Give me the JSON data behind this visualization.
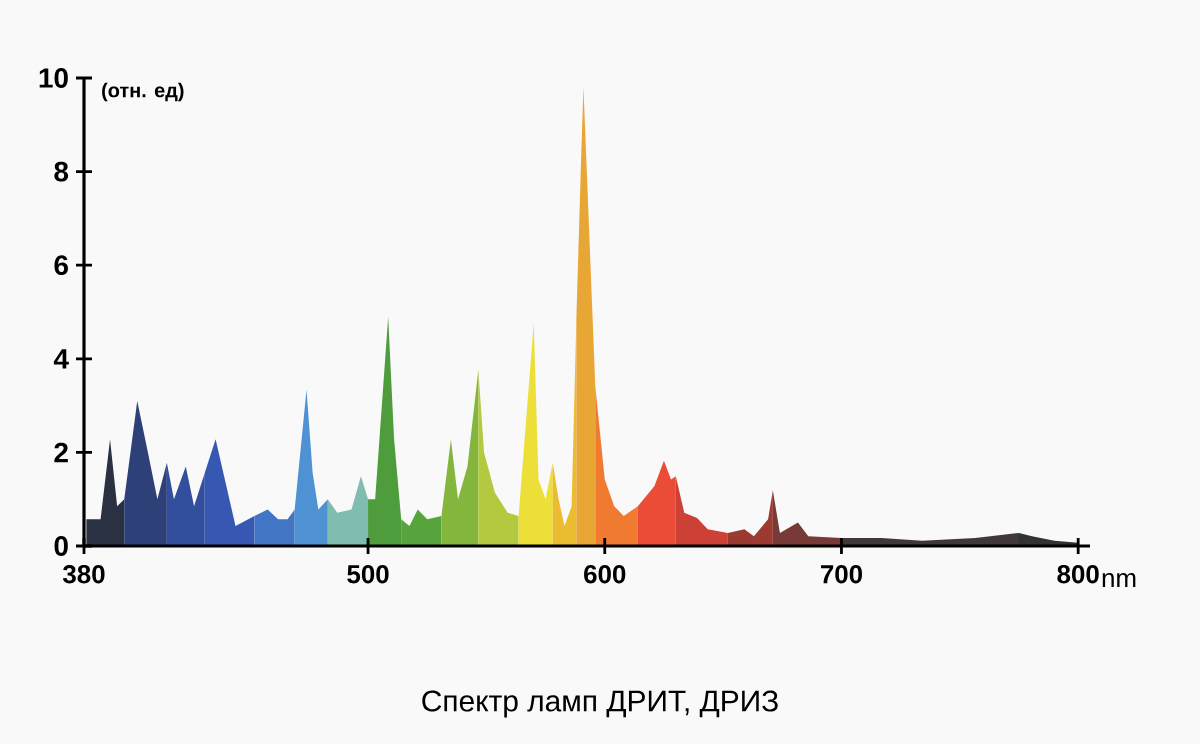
{
  "chart_data": {
    "type": "area",
    "title": "Спектр ламп ДРИТ, ДРИЗ",
    "xlabel": "nm",
    "ylabel": "(отн. ед)",
    "xlim": [
      380,
      805
    ],
    "ylim": [
      0,
      10
    ],
    "xticks": [
      380,
      500,
      600,
      700,
      800
    ],
    "yticks": [
      0,
      2,
      4,
      6,
      8,
      10
    ],
    "series": [
      {
        "color": "#2a3142",
        "x": [
          381,
          387,
          391,
          394,
          397
        ],
        "values": [
          0.57,
          0.57,
          2.28,
          0.85,
          1.0
        ]
      },
      {
        "color": "#2e4078",
        "x": [
          397,
          402.5,
          407,
          411,
          415
        ],
        "values": [
          1.0,
          3.1,
          2.0,
          1.0,
          1.78
        ]
      },
      {
        "color": "#324e9c",
        "x": [
          415,
          418,
          423,
          426.5,
          431
        ],
        "values": [
          1.78,
          1.0,
          1.7,
          0.85,
          1.56
        ]
      },
      {
        "color": "#3658b2",
        "x": [
          431,
          435.6,
          439.5,
          444,
          452
        ],
        "values": [
          1.56,
          2.28,
          1.42,
          0.43,
          0.64
        ]
      },
      {
        "color": "#4276c4",
        "x": [
          452,
          457.6,
          462,
          466,
          469
        ],
        "values": [
          0.64,
          0.78,
          0.57,
          0.57,
          0.78
        ]
      },
      {
        "color": "#4e92d4",
        "x": [
          469,
          474,
          476.6,
          479,
          483
        ],
        "values": [
          0.78,
          3.34,
          1.56,
          0.78,
          1.0
        ]
      },
      {
        "color": "#80bcb0",
        "x": [
          483,
          487,
          493,
          497,
          500
        ],
        "values": [
          1.0,
          0.71,
          0.78,
          1.49,
          1.0
        ]
      },
      {
        "color": "#4e9c3c",
        "x": [
          500,
          503,
          508.5,
          511,
          514
        ],
        "values": [
          1.0,
          1.0,
          4.9,
          2.28,
          0.57
        ]
      },
      {
        "color": "#58a43c",
        "x": [
          514,
          517.5,
          521,
          525,
          531
        ],
        "values": [
          0.57,
          0.43,
          0.78,
          0.57,
          0.64
        ]
      },
      {
        "color": "#84b63e",
        "x": [
          531,
          535,
          538,
          542,
          546.6
        ],
        "values": [
          0.64,
          2.28,
          1.0,
          1.7,
          3.77
        ]
      },
      {
        "color": "#b4c840",
        "x": [
          546.6,
          549,
          553.6,
          559,
          563.6
        ],
        "values": [
          3.77,
          2.0,
          1.14,
          0.71,
          0.64
        ]
      },
      {
        "color": "#ece038",
        "x": [
          563.6,
          570,
          572,
          575,
          578
        ],
        "values": [
          0.64,
          4.77,
          1.42,
          1.0,
          1.78
        ]
      },
      {
        "color": "#ecbc30",
        "x": [
          578,
          580.5,
          583,
          586,
          588
        ],
        "values": [
          1.78,
          1.0,
          0.43,
          0.85,
          4.84
        ]
      },
      {
        "color": "#e8a634",
        "x": [
          588,
          590,
          591,
          593,
          596
        ],
        "values": [
          4.84,
          8.25,
          9.8,
          7.25,
          3.41
        ]
      },
      {
        "color": "#f07a30",
        "x": [
          596,
          600,
          604,
          608,
          614
        ],
        "values": [
          3.41,
          1.42,
          0.85,
          0.64,
          0.85
        ]
      },
      {
        "color": "#ea4c38",
        "x": [
          614,
          621,
          625,
          628,
          630
        ],
        "values": [
          0.85,
          1.28,
          1.82,
          1.42,
          1.49
        ]
      },
      {
        "color": "#cc4036",
        "x": [
          630,
          633.6,
          639,
          643.5,
          652
        ],
        "values": [
          1.49,
          0.71,
          0.6,
          0.36,
          0.28
        ]
      },
      {
        "color": "#9c3a32",
        "x": [
          652,
          659,
          663,
          669,
          671
        ],
        "values": [
          0.28,
          0.36,
          0.21,
          0.57,
          1.19
        ]
      },
      {
        "color": "#783a36",
        "x": [
          671,
          674,
          681.6,
          686,
          700
        ],
        "values": [
          1.19,
          0.28,
          0.5,
          0.21,
          0.17
        ]
      },
      {
        "color": "#403838",
        "x": [
          700,
          717,
          734,
          756.5,
          775
        ],
        "values": [
          0.17,
          0.17,
          0.11,
          0.17,
          0.28
        ]
      },
      {
        "color": "#323232",
        "x": [
          775,
          780.5,
          790,
          800
        ],
        "values": [
          0.28,
          0.21,
          0.11,
          0.07
        ]
      }
    ]
  }
}
